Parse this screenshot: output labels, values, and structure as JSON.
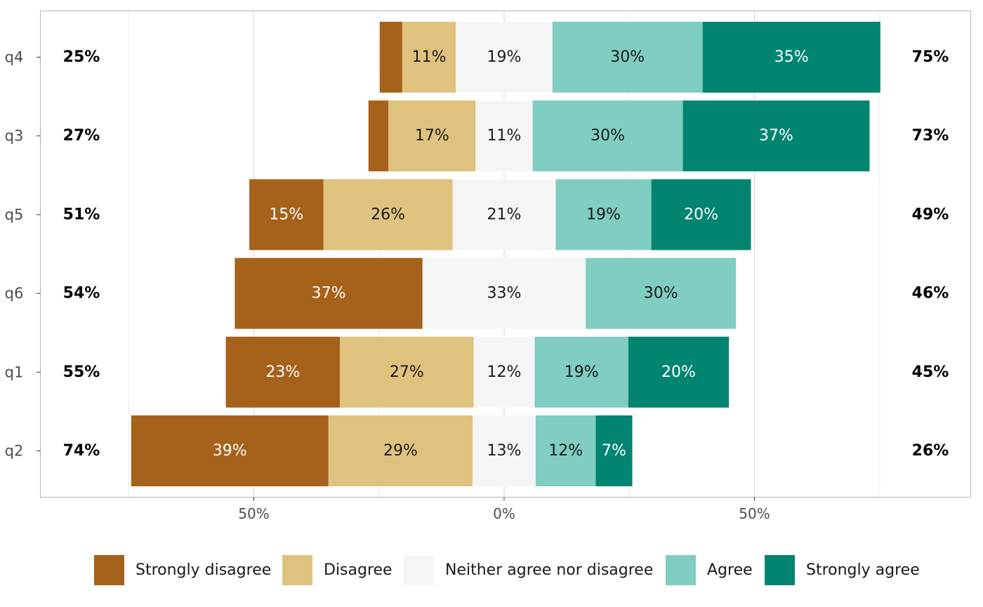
{
  "chart_data": {
    "type": "bar",
    "orientation": "horizontal-diverging",
    "categories": [
      "q4",
      "q3",
      "q5",
      "q6",
      "q1",
      "q2"
    ],
    "series": [
      {
        "name": "Strongly disagree",
        "color": "#a6611a",
        "values": [
          4.5,
          4,
          14.8,
          37.5,
          22.8,
          39.4
        ],
        "labels": [
          "",
          "",
          "15%",
          "37%",
          "23%",
          "39%"
        ]
      },
      {
        "name": "Disagree",
        "color": "#dfc27d",
        "values": [
          10.7,
          17.4,
          25.8,
          0,
          26.7,
          28.8
        ],
        "labels": [
          "11%",
          "17%",
          "26%",
          "",
          "27%",
          "29%"
        ]
      },
      {
        "name": "Neither agree nor disagree",
        "color": "#f5f5f5",
        "values": [
          19.3,
          11.4,
          20.6,
          32.6,
          12.2,
          12.6
        ],
        "labels": [
          "19%",
          "11%",
          "21%",
          "33%",
          "12%",
          "13%"
        ]
      },
      {
        "name": "Agree",
        "color": "#80cdc1",
        "values": [
          30,
          30,
          19.1,
          30,
          18.7,
          12
        ],
        "labels": [
          "30%",
          "30%",
          "19%",
          "30%",
          "19%",
          "12%"
        ]
      },
      {
        "name": "Strongly agree",
        "color": "#018571",
        "values": [
          35.5,
          37.3,
          19.9,
          0,
          20.1,
          7.3
        ],
        "labels": [
          "35%",
          "37%",
          "20%",
          "",
          "20%",
          "7%"
        ]
      }
    ],
    "left_totals": [
      "25%",
      "27%",
      "51%",
      "54%",
      "55%",
      "74%"
    ],
    "right_totals": [
      "75%",
      "73%",
      "49%",
      "46%",
      "45%",
      "26%"
    ],
    "x_ticks": [
      {
        "value": -50,
        "label": "50%"
      },
      {
        "value": 0,
        "label": "0%"
      },
      {
        "value": 50,
        "label": "50%"
      }
    ],
    "xlim": [
      -92,
      88
    ],
    "grid": true,
    "legend_position": "bottom",
    "title": "",
    "xlabel": "",
    "ylabel": ""
  }
}
